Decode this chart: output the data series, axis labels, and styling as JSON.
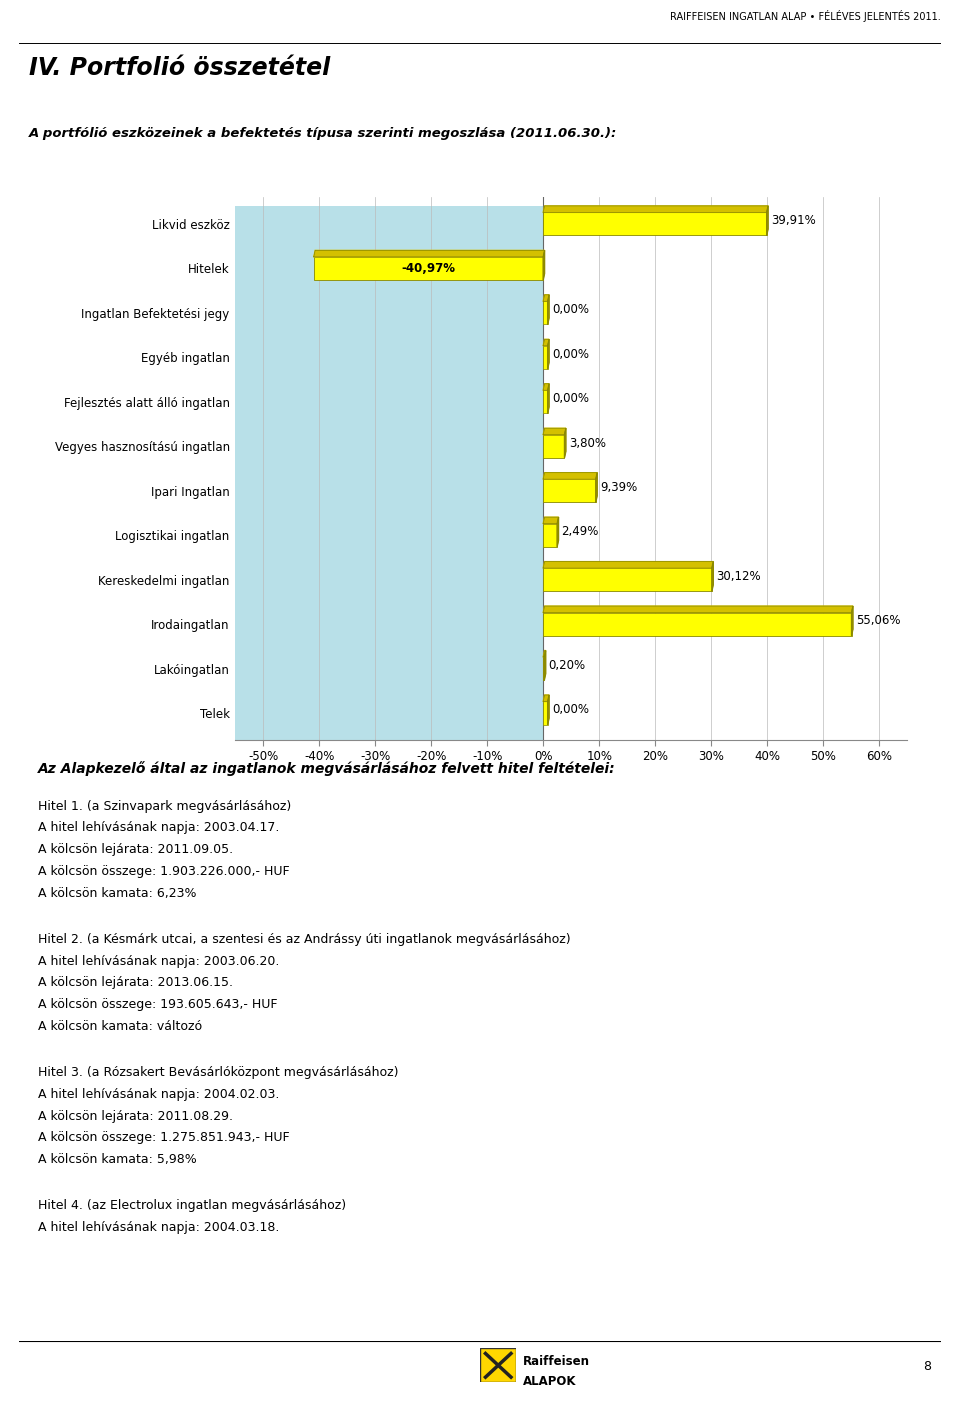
{
  "header_text": "RAIFFEISEN INGATLAN ALAP • FÉLÉVES JELENTÉS 2011.",
  "title1": "IV. Portfolió összetétel",
  "subtitle": "A portfólió eszközeinek a befektetés típusa szerinti megoszlása (2011.06.30.):",
  "categories": [
    "Likvid eszköz",
    "Hitelek",
    "Ingatlan Befektetési jegy",
    "Egyéb ingatlan",
    "Fejlesztés alatt álló ingatlan",
    "Vegyes hasznosítású ingatlan",
    "Ipari Ingatlan",
    "Logisztikai ingatlan",
    "Kereskedelmi ingatlan",
    "Irodaingatlan",
    "Lakóingatlan",
    "Telek"
  ],
  "values": [
    39.91,
    -40.97,
    0.0,
    0.0,
    0.0,
    3.8,
    9.39,
    2.49,
    30.12,
    55.06,
    0.2,
    0.0
  ],
  "labels": [
    "39,91%",
    "-40,97%",
    "0,00%",
    "0,00%",
    "0,00%",
    "3,80%",
    "9,39%",
    "2,49%",
    "30,12%",
    "55,06%",
    "0,20%",
    "0,00%"
  ],
  "bar_color_yellow": "#FFFF00",
  "bar_top_color": "#D4C000",
  "bar_side_color": "#999000",
  "bar_edge_color": "#888800",
  "bg_color_light_blue": "#B8E0E8",
  "xlim_min": -55,
  "xlim_max": 65,
  "xticks": [
    -50,
    -40,
    -30,
    -20,
    -10,
    0,
    10,
    20,
    30,
    40,
    50,
    60
  ],
  "xticklabels": [
    "-50%",
    "-40%",
    "-30%",
    "-20%",
    "-10%",
    "0%",
    "10%",
    "20%",
    "30%",
    "40%",
    "50%",
    "60%"
  ],
  "text_section_title": "Az Alapkezelő által az ingatlanok megvásárlásához felvett hitel feltételei:",
  "hitel1_title": "Hitel 1. (a Szinvapark megvásárlásához)",
  "hitel1_lines": [
    "A hitel lehívásának napja: 2003.04.17.",
    "A kölcsön lejárata: 2011.09.05.",
    "A kölcsön összege: 1.903.226.000,- HUF",
    "A kölcsön kamata: 6,23%"
  ],
  "hitel2_title": "Hitel 2. (a Késmárk utcai, a szentesi és az Andrássy úti ingatlanok megvásárlásához)",
  "hitel2_lines": [
    "A hitel lehívásának napja: 2003.06.20.",
    "A kölcsön lejárata: 2013.06.15.",
    "A kölcsön összege: 193.605.643,- HUF",
    "A kölcsön kamata: változó"
  ],
  "hitel3_title": "Hitel 3. (a Rózsakert Bevásárlóközpont megvásárlásához)",
  "hitel3_lines": [
    "A hitel lehívásának napja: 2004.02.03.",
    "A kölcsön lejárata: 2011.08.29.",
    "A kölcsön összege: 1.275.851.943,- HUF",
    "A kölcsön kamata: 5,98%"
  ],
  "hitel4_title": "Hitel 4. (az Electrolux ingatlan megvásárlásához)",
  "hitel4_lines": [
    "A hitel lehívásának napja: 2004.03.18."
  ],
  "page_number": "8"
}
